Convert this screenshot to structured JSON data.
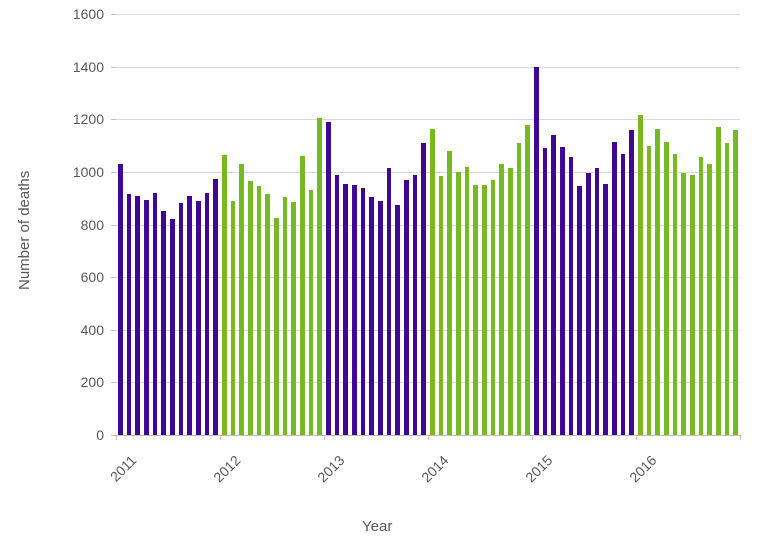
{
  "chart_data": {
    "type": "bar",
    "title": "",
    "xlabel": "Year",
    "ylabel": "Number of deaths",
    "ylim": [
      0,
      1600
    ],
    "ytick_interval": 200,
    "ytick_labels": [
      "0",
      "200",
      "400",
      "600",
      "800",
      "1000",
      "1200",
      "1400",
      "1600"
    ],
    "grid": true,
    "legend_position": "none",
    "bars_per_category": 12,
    "categories": [
      "2011",
      "2012",
      "2013",
      "2014",
      "2015",
      "2016"
    ],
    "series": [
      {
        "name": "2011",
        "color": "#3F0894",
        "values": [
          1030,
          915,
          910,
          895,
          920,
          850,
          820,
          880,
          910,
          890,
          920,
          975
        ]
      },
      {
        "name": "2012",
        "color": "#76B923",
        "values": [
          1065,
          890,
          1030,
          965,
          945,
          915,
          825,
          905,
          885,
          1060,
          930,
          1205
        ]
      },
      {
        "name": "2013",
        "color": "#3F0894",
        "values": [
          1190,
          990,
          955,
          950,
          940,
          905,
          890,
          1015,
          875,
          970,
          990,
          1110
        ]
      },
      {
        "name": "2014",
        "color": "#76B923",
        "values": [
          1165,
          985,
          1080,
          1000,
          1020,
          950,
          950,
          970,
          1030,
          1015,
          1110,
          1180
        ]
      },
      {
        "name": "2015",
        "color": "#3F0894",
        "values": [
          1400,
          1090,
          1140,
          1095,
          1055,
          945,
          995,
          1015,
          955,
          1115,
          1070,
          1160
        ]
      },
      {
        "name": "2016",
        "color": "#76B923",
        "values": [
          1215,
          1100,
          1165,
          1115,
          1070,
          995,
          990,
          1055,
          1030,
          1170,
          1110,
          1160
        ]
      }
    ],
    "colors": {
      "purple_bar": "#3F0894",
      "green_bar": "#76B923",
      "gridline": "#D9D9D9",
      "axis_line": "#BFBFBF",
      "label_text": "#595959",
      "background": "#FFFFFF"
    }
  }
}
